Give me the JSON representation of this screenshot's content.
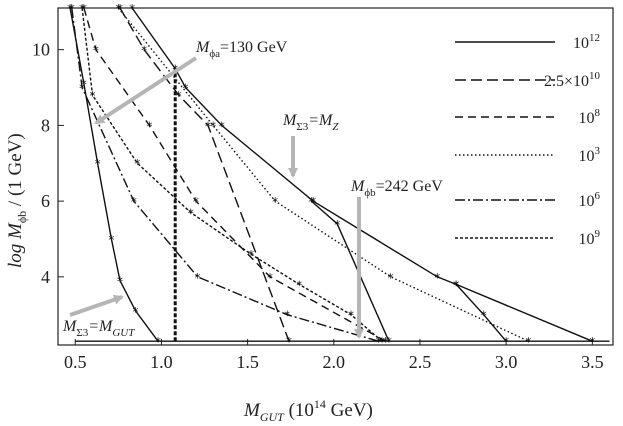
{
  "chart_data": {
    "type": "line",
    "xlabel": "M_GUT (10^14 GeV)",
    "ylabel": "log M_φb / (1 GeV)",
    "xlim": [
      0.4,
      3.62
    ],
    "ylim": [
      2.2,
      11.1
    ],
    "xticks": [
      "0.5",
      "1.0",
      "1.5",
      "2.0",
      "2.5",
      "3.0",
      "3.5"
    ],
    "yticks": [
      "4",
      "6",
      "8",
      "10"
    ],
    "xtick_values": [
      0.5,
      1.0,
      1.5,
      2.0,
      2.5,
      3.0,
      3.5
    ],
    "ytick_values": [
      4,
      6,
      8,
      10
    ],
    "grid": false,
    "legend_position": "top-right",
    "legend": [
      "10^12",
      "2.5×10^10",
      "10^8",
      "10^3",
      "10^6",
      "10^9"
    ],
    "baseline": {
      "y": 2.3,
      "x_range": [
        0.5,
        3.6
      ]
    },
    "vertical_line": {
      "x": 1.08,
      "y_range": [
        2.3,
        9.5
      ],
      "style": "dashed-thick"
    },
    "series": [
      {
        "name": "10^12",
        "style": "solid",
        "x": [
          0.83,
          1.08,
          1.14,
          1.35,
          1.88,
          2.6,
          2.71,
          3.5
        ],
        "y": [
          11.1,
          9.5,
          9.0,
          8.0,
          6.0,
          4.0,
          3.8,
          2.3
        ]
      },
      {
        "name": "2.5×10^10",
        "style": "long-dash",
        "x": [
          0.76,
          0.9,
          1.1,
          1.27,
          1.74
        ],
        "y": [
          11.1,
          10.0,
          8.8,
          8.0,
          2.3
        ]
      },
      {
        "name": "10^8",
        "style": "dash",
        "x": [
          0.55,
          0.62,
          0.93,
          1.2,
          1.63,
          2.3
        ],
        "y": [
          11.1,
          10.0,
          8.0,
          6.0,
          4.0,
          2.3
        ]
      },
      {
        "name": "10^3",
        "style": "dotted",
        "x": [
          0.75,
          1.3,
          1.66,
          2.33,
          3.13
        ],
        "y": [
          11.1,
          8.0,
          6.0,
          4.0,
          2.3
        ]
      },
      {
        "name": "10^6",
        "style": "dash-dot",
        "x": [
          0.48,
          0.54,
          0.84,
          1.21,
          1.73,
          2.26
        ],
        "y": [
          11.1,
          9.0,
          6.0,
          4.0,
          3.0,
          2.3
        ]
      },
      {
        "name": "10^9",
        "style": "fine-dash",
        "x": [
          0.54,
          0.6,
          0.86,
          1.17,
          1.52,
          1.8,
          2.1,
          2.28
        ],
        "y": [
          11.1,
          8.8,
          7.0,
          5.7,
          4.6,
          3.8,
          3.0,
          2.3
        ]
      },
      {
        "name": "",
        "style": "solid",
        "x": [
          0.47,
          0.55,
          0.63,
          0.71,
          0.76,
          0.85,
          0.98
        ],
        "y": [
          11.1,
          9.1,
          7.0,
          5.0,
          3.9,
          3.1,
          2.3
        ]
      },
      {
        "name": "",
        "style": "solid",
        "x": [
          1.87,
          2.02,
          2.32
        ],
        "y": [
          6.0,
          5.4,
          2.3
        ]
      },
      {
        "name": "",
        "style": "solid",
        "x": [
          2.71,
          2.87,
          3.0
        ],
        "y": [
          3.8,
          3.0,
          2.3
        ]
      }
    ],
    "annotations": {
      "phi_a": {
        "main": "M",
        "sub": "ϕa",
        "rest": "=130 GeV"
      },
      "phi_b": {
        "main": "M",
        "sub": "ϕb",
        "rest": "=242 GeV"
      },
      "sigma_mz": {
        "main": "M",
        "sub": "Σ3",
        "eq": "=M",
        "sub2": "Z"
      },
      "sigma_mgut": {
        "main": "M",
        "sub": "Σ3",
        "eq": "=M",
        "sub2": "GUT"
      }
    }
  },
  "colors": {
    "line": "#111111",
    "arrow": "#b5b5b5"
  }
}
